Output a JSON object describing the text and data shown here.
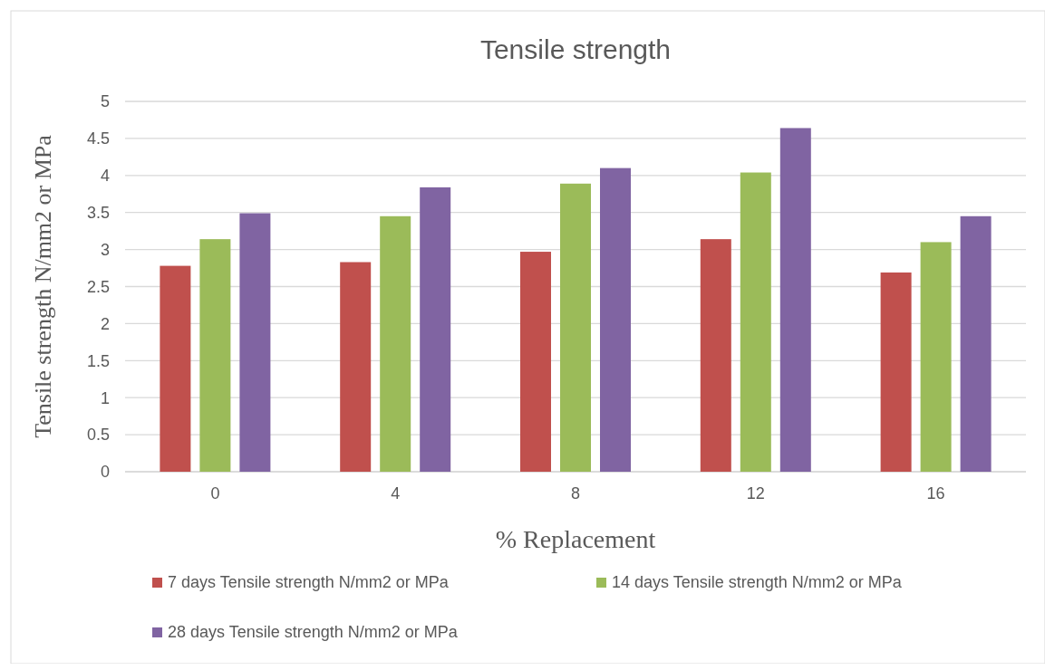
{
  "chart_data": {
    "type": "bar",
    "title": "Tensile strength",
    "xlabel": "% Replacement",
    "ylabel": "Tensile strength N/mm2 or MPa",
    "categories": [
      "0",
      "4",
      "8",
      "12",
      "16"
    ],
    "series": [
      {
        "name": "7 days Tensile strength N/mm2 or MPa",
        "color": "#c0504d",
        "values": [
          2.78,
          2.83,
          2.97,
          3.14,
          2.69
        ]
      },
      {
        "name": "14 days Tensile strength N/mm2 or MPa",
        "color": "#9bbb59",
        "values": [
          3.14,
          3.45,
          3.89,
          4.04,
          3.1
        ]
      },
      {
        "name": "28 days Tensile strength N/mm2 or MPa",
        "color": "#8064a2",
        "values": [
          3.49,
          3.84,
          4.1,
          4.64,
          3.45
        ]
      }
    ],
    "ylim": [
      0,
      5
    ],
    "yticks": [
      0,
      0.5,
      1,
      1.5,
      2,
      2.5,
      3,
      3.5,
      4,
      4.5,
      5
    ],
    "grid": "y",
    "legend": "bottom"
  }
}
